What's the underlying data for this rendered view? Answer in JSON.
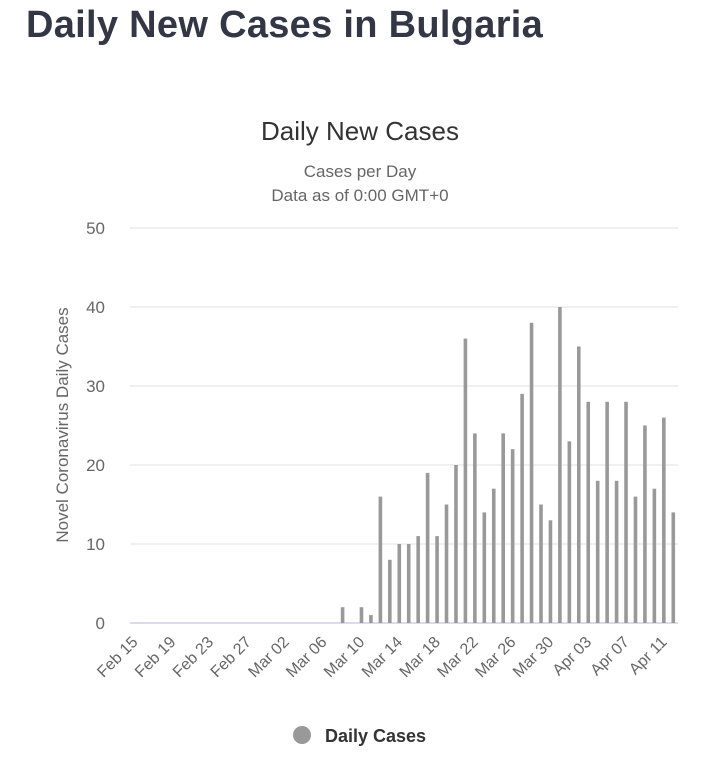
{
  "page": {
    "title": "Daily New Cases in Bulgaria"
  },
  "chart_data": {
    "type": "bar",
    "title": "Daily New Cases",
    "subtitle": "Cases per Day",
    "subtitle2": "Data as of 0:00 GMT+0",
    "xlabel": "",
    "ylabel": "Novel Coronavirus Daily Cases",
    "ylim": [
      0,
      50
    ],
    "yticks": [
      0,
      10,
      20,
      30,
      40,
      50
    ],
    "xtick_labels": [
      "Feb 15",
      "Feb 19",
      "Feb 23",
      "Feb 27",
      "Mar 02",
      "Mar 06",
      "Mar 10",
      "Mar 14",
      "Mar 18",
      "Mar 22",
      "Mar 26",
      "Mar 30",
      "Apr 03",
      "Apr 07",
      "Apr 11"
    ],
    "xtick_every": 4,
    "grid": true,
    "legend": {
      "position": "bottom-center",
      "label": "Daily Cases"
    },
    "bar_color": "#999999",
    "categories": [
      "Feb 15",
      "Feb 16",
      "Feb 17",
      "Feb 18",
      "Feb 19",
      "Feb 20",
      "Feb 21",
      "Feb 22",
      "Feb 23",
      "Feb 24",
      "Feb 25",
      "Feb 26",
      "Feb 27",
      "Feb 28",
      "Feb 29",
      "Mar 01",
      "Mar 02",
      "Mar 03",
      "Mar 04",
      "Mar 05",
      "Mar 06",
      "Mar 07",
      "Mar 08",
      "Mar 09",
      "Mar 10",
      "Mar 11",
      "Mar 12",
      "Mar 13",
      "Mar 14",
      "Mar 15",
      "Mar 16",
      "Mar 17",
      "Mar 18",
      "Mar 19",
      "Mar 20",
      "Mar 21",
      "Mar 22",
      "Mar 23",
      "Mar 24",
      "Mar 25",
      "Mar 26",
      "Mar 27",
      "Mar 28",
      "Mar 29",
      "Mar 30",
      "Mar 31",
      "Apr 01",
      "Apr 02",
      "Apr 03",
      "Apr 04",
      "Apr 05",
      "Apr 06",
      "Apr 07",
      "Apr 08",
      "Apr 09",
      "Apr 10",
      "Apr 11",
      "Apr 12"
    ],
    "series": [
      {
        "name": "Daily Cases",
        "values": [
          0,
          0,
          0,
          0,
          0,
          0,
          0,
          0,
          0,
          0,
          0,
          0,
          0,
          0,
          0,
          0,
          0,
          0,
          0,
          0,
          0,
          0,
          2,
          0,
          2,
          1,
          16,
          8,
          10,
          10,
          11,
          19,
          11,
          15,
          20,
          36,
          24,
          14,
          17,
          24,
          22,
          29,
          38,
          15,
          13,
          40,
          23,
          35,
          28,
          18,
          28,
          18,
          28,
          16,
          25,
          17,
          26,
          14
        ]
      }
    ]
  }
}
